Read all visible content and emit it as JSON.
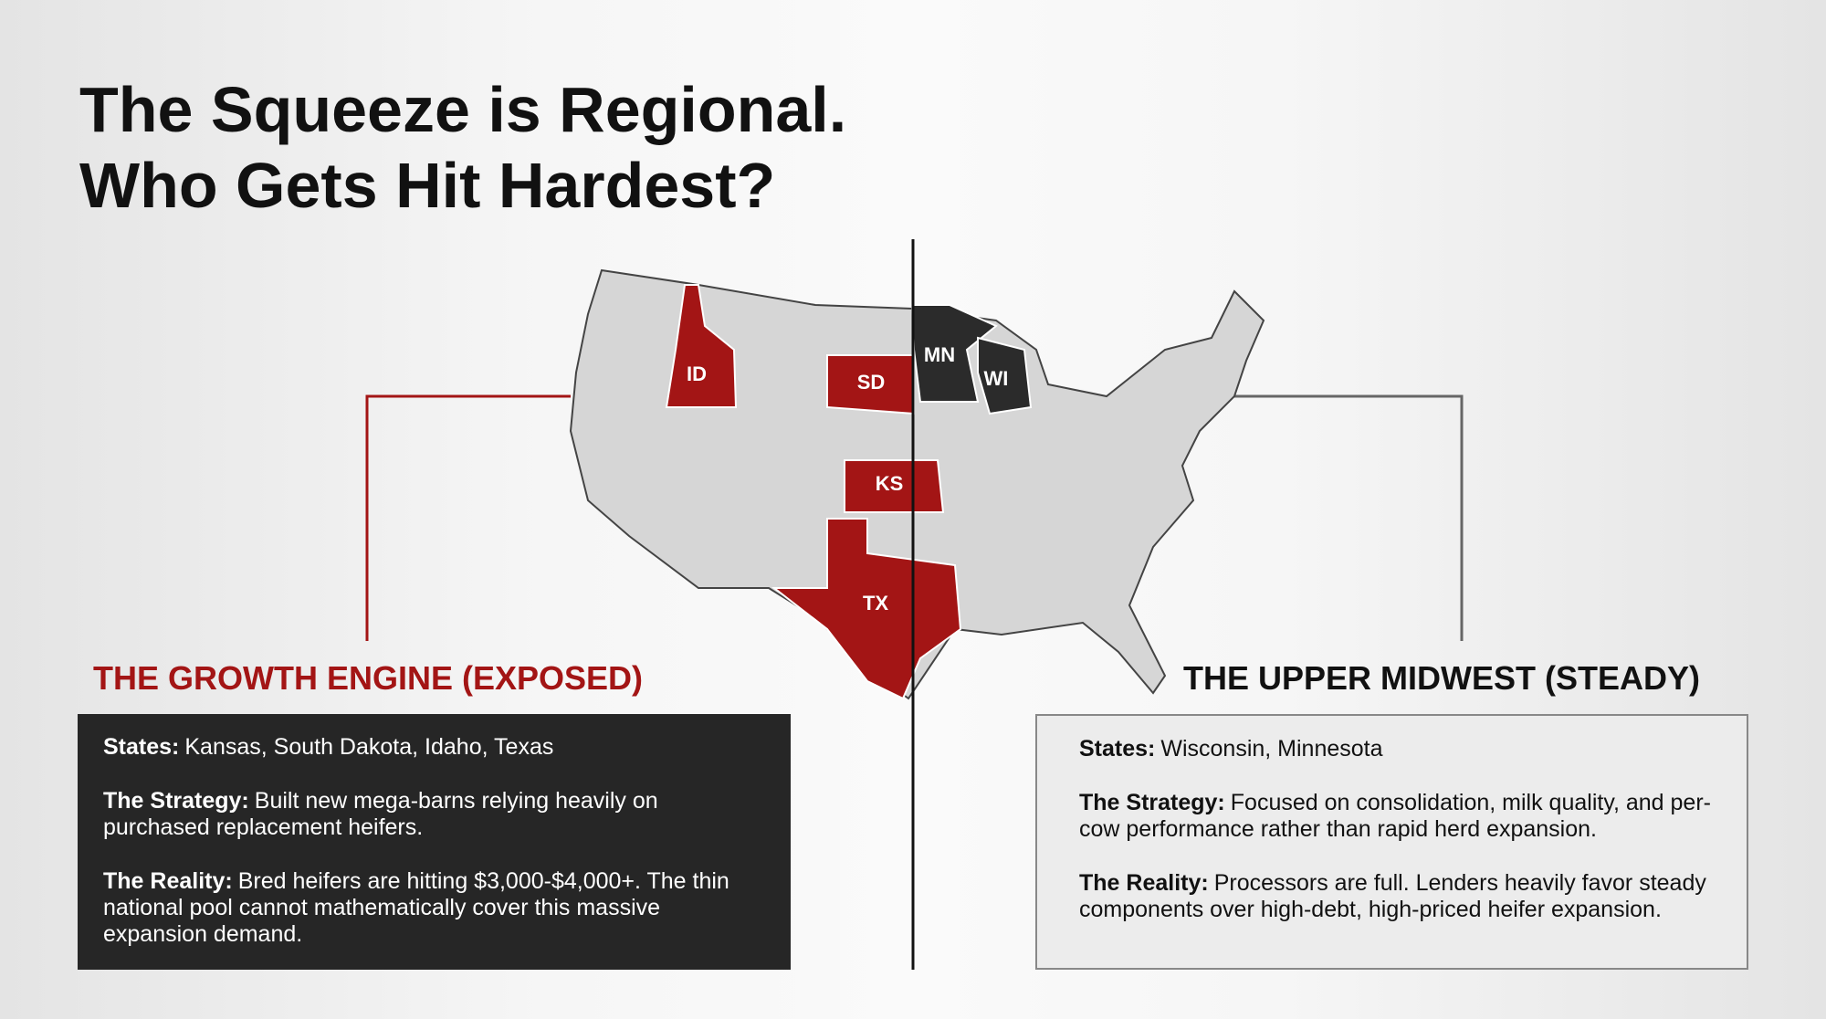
{
  "header": {
    "title_line1": "The Squeeze is Regional.",
    "title_line2": "Who Gets Hit Hardest?"
  },
  "map": {
    "labels": [
      "ID",
      "SD",
      "KS",
      "TX",
      "MN",
      "WI"
    ]
  },
  "left": {
    "heading": "THE GROWTH ENGINE (EXPOSED)",
    "items": [
      {
        "label": "States:",
        "text": "Kansas, South Dakota, Idaho, Texas"
      },
      {
        "label": "The Strategy:",
        "text": "Built new mega-barns relying heavily on purchased replacement heifers."
      },
      {
        "label": "The Reality:",
        "text": "Bred heifers are hitting $3,000-$4,000+. The thin national pool cannot mathematically cover this massive expansion demand."
      }
    ]
  },
  "right": {
    "heading": "THE UPPER MIDWEST (STEADY)",
    "items": [
      {
        "label": "States:",
        "text": "Wisconsin, Minnesota"
      },
      {
        "label": "The Strategy:",
        "text": "Focused on consolidation, milk quality, and per-cow performance rather than rapid herd expansion."
      },
      {
        "label": "The Reality:",
        "text": "Processors are full. Lenders heavily favor steady components over high-debt, high-priced heifer expansion."
      }
    ]
  }
}
